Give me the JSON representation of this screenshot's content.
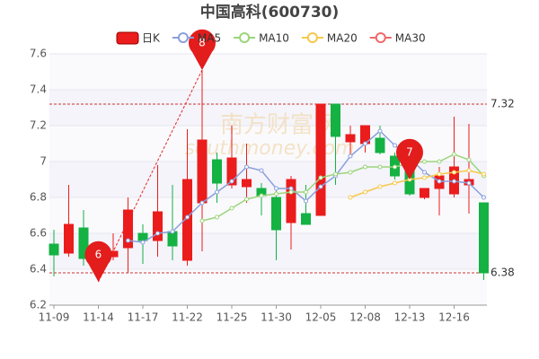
{
  "chart_data": {
    "type": "candlestick",
    "title": "中国高科(600730)",
    "categories": [
      "11-09",
      null,
      null,
      "11-14",
      null,
      null,
      "11-17",
      null,
      null,
      "11-22",
      null,
      null,
      "11-25",
      null,
      null,
      "11-30",
      null,
      null,
      "12-05",
      null,
      null,
      "12-08",
      null,
      null,
      "12-13",
      null,
      null,
      "12-16",
      null,
      null
    ],
    "candle_name": "日K",
    "up_color": "#eb1c1c",
    "down_color": "#14b143",
    "open": [
      6.54,
      6.49,
      6.63,
      6.46,
      6.47,
      6.52,
      6.6,
      6.56,
      6.61,
      6.45,
      6.77,
      7.01,
      6.87,
      6.86,
      6.85,
      6.8,
      6.66,
      6.71,
      6.7,
      7.32,
      7.11,
      7.1,
      7.13,
      7.03,
      6.95,
      6.8,
      6.85,
      6.82,
      6.87,
      6.77
    ],
    "close": [
      6.48,
      6.65,
      6.46,
      6.48,
      6.5,
      6.73,
      6.56,
      6.72,
      6.53,
      6.9,
      7.12,
      6.88,
      7.02,
      6.9,
      6.81,
      6.62,
      6.9,
      6.65,
      7.32,
      7.14,
      7.15,
      7.2,
      7.05,
      6.92,
      6.82,
      6.85,
      6.92,
      6.97,
      6.9,
      6.38
    ],
    "high": [
      6.62,
      6.87,
      6.73,
      6.5,
      6.6,
      6.8,
      6.65,
      6.98,
      6.87,
      7.18,
      7.51,
      7.05,
      7.2,
      7.1,
      6.88,
      6.85,
      6.92,
      6.87,
      7.32,
      7.32,
      7.2,
      7.2,
      7.2,
      7.05,
      6.98,
      6.85,
      6.97,
      7.25,
      7.21,
      6.77
    ],
    "low": [
      6.36,
      6.47,
      6.42,
      6.33,
      6.45,
      6.38,
      6.43,
      6.47,
      6.45,
      6.42,
      6.5,
      6.77,
      6.85,
      6.77,
      6.7,
      6.45,
      6.51,
      6.65,
      6.7,
      6.87,
      7.03,
      7.05,
      7.04,
      6.9,
      6.81,
      6.79,
      6.7,
      6.8,
      6.71,
      6.34
    ],
    "series": [
      {
        "name": "MA5",
        "color": "#8a9fdc",
        "values": [
          null,
          null,
          null,
          null,
          null,
          6.56,
          6.55,
          6.6,
          6.61,
          6.69,
          6.77,
          6.83,
          6.89,
          6.97,
          6.95,
          6.85,
          6.85,
          6.78,
          6.86,
          6.92,
          7.03,
          7.1,
          7.17,
          7.09,
          7.02,
          6.94,
          6.89,
          6.89,
          6.88,
          6.8
        ]
      },
      {
        "name": "MA10",
        "color": "#9bd57a",
        "values": [
          null,
          null,
          null,
          null,
          null,
          null,
          null,
          null,
          null,
          null,
          6.67,
          6.69,
          6.74,
          6.79,
          6.81,
          6.82,
          6.83,
          6.83,
          6.91,
          6.93,
          6.94,
          6.97,
          6.97,
          6.97,
          6.99,
          7.0,
          7.0,
          7.04,
          7.01,
          6.92
        ]
      },
      {
        "name": "MA20",
        "color": "#f6c94a",
        "values": [
          null,
          null,
          null,
          null,
          null,
          null,
          null,
          null,
          null,
          null,
          null,
          null,
          null,
          null,
          null,
          null,
          null,
          null,
          null,
          null,
          6.8,
          6.83,
          6.86,
          6.88,
          6.9,
          6.91,
          6.93,
          6.94,
          6.95,
          6.93
        ]
      },
      {
        "name": "MA30",
        "color": "#ee6a6a",
        "values": [
          null,
          null,
          null,
          null,
          null,
          null,
          null,
          null,
          null,
          null,
          null,
          null,
          null,
          null,
          null,
          null,
          null,
          null,
          null,
          null,
          null,
          null,
          null,
          null,
          null,
          null,
          null,
          null,
          null,
          null
        ]
      }
    ],
    "ylim": [
      6.2,
      7.6
    ],
    "yticks": [
      6.2,
      6.4,
      6.6,
      6.8,
      7,
      7.2,
      7.4,
      7.6
    ],
    "reference_lines": [
      {
        "value": 7.32,
        "label": "7.32"
      },
      {
        "value": 6.38,
        "label": "6.38"
      }
    ],
    "markers": [
      {
        "text": "8",
        "index": 10,
        "value": 7.51
      },
      {
        "text": "6",
        "index": 3,
        "value": 6.33
      },
      {
        "text": "7",
        "index": 24,
        "value": 6.9
      }
    ],
    "watermark": [
      "南方财富网",
      "southmoney.com"
    ]
  }
}
